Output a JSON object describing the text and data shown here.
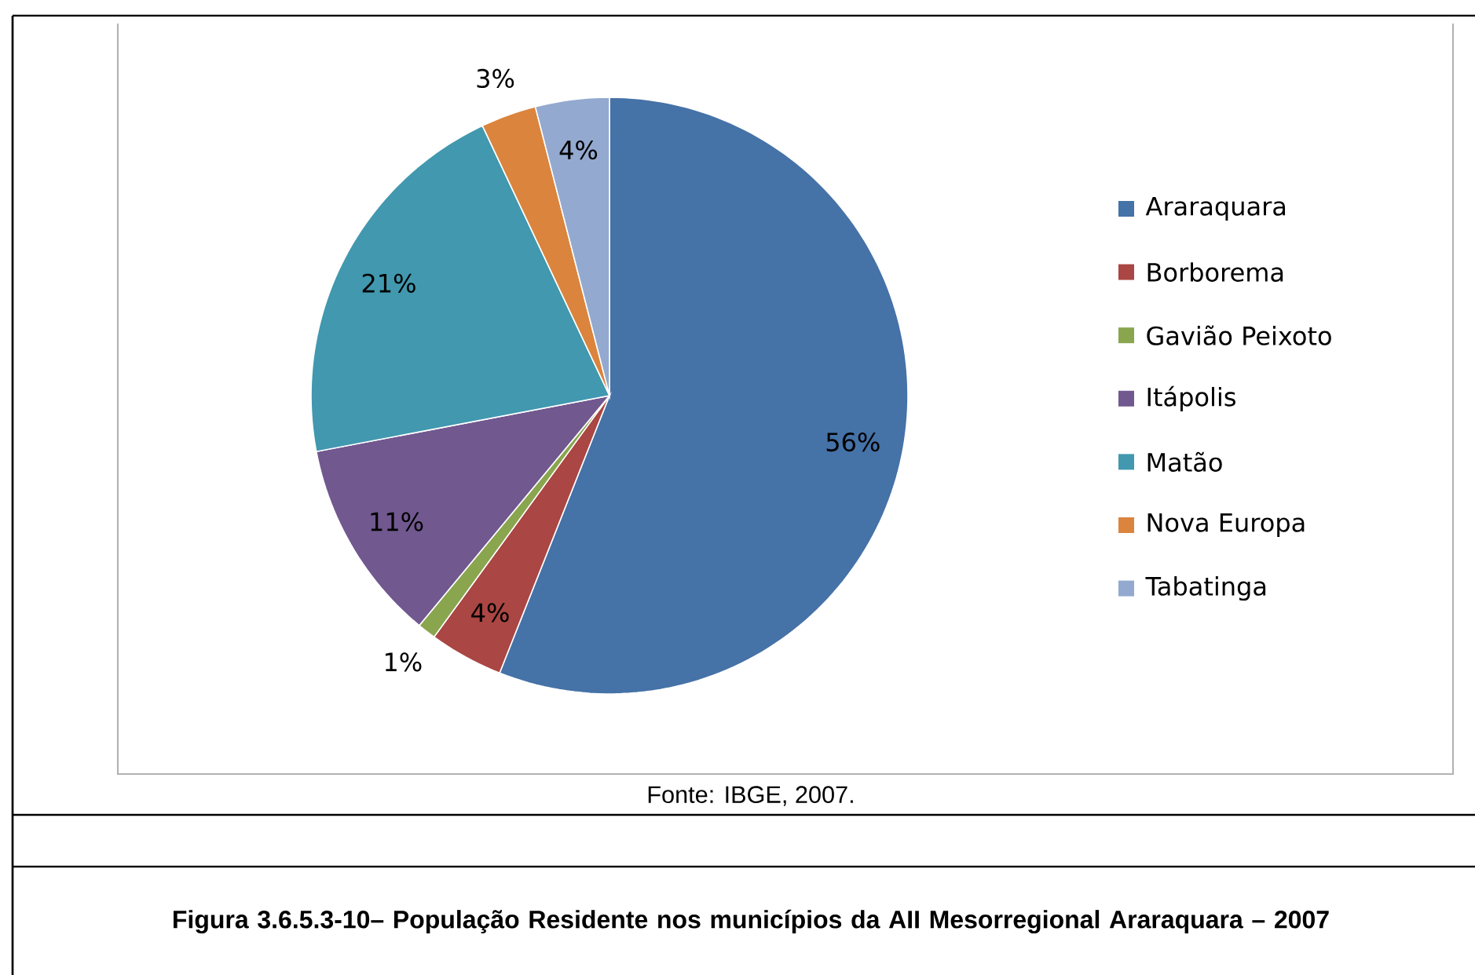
{
  "chart_data": {
    "type": "pie",
    "categories": [
      "Araraquara",
      "Borborema",
      "Gavião Peixoto",
      "Itápolis",
      "Matão",
      "Nova Europa",
      "Tabatinga"
    ],
    "values": [
      56,
      4,
      1,
      11,
      21,
      3,
      4
    ],
    "colors": [
      "#4572a7",
      "#aa4643",
      "#89a54e",
      "#71588f",
      "#4198af",
      "#db843d",
      "#93a9cf"
    ],
    "value_labels": [
      "56%",
      "4%",
      "1%",
      "11%",
      "21%",
      "3%",
      "4%"
    ],
    "legend": "right",
    "annotations": [
      "Fonte: IBGE, 2007.",
      "Figura 3.6.5.3-10– População Residente nos municípios da AII Mesorregional Araraquara – 2007"
    ]
  }
}
